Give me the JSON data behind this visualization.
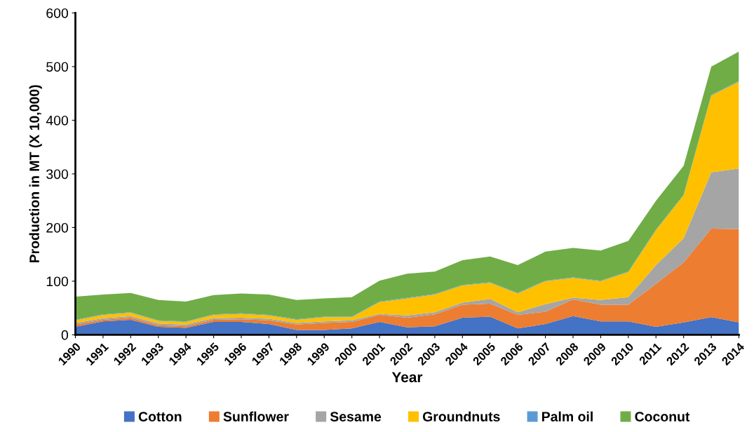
{
  "chart_data": {
    "type": "area",
    "stacked": true,
    "xlabel": "Year",
    "ylabel": "Production in MT (X 10,000)",
    "categories": [
      "1990",
      "1991",
      "1992",
      "1993",
      "1994",
      "1995",
      "1996",
      "1997",
      "1998",
      "1999",
      "2000",
      "2001",
      "2002",
      "2003",
      "2004",
      "2005",
      "2006",
      "2007",
      "2008",
      "2009",
      "2010",
      "2011",
      "2012",
      "2013",
      "2014"
    ],
    "series": [
      {
        "name": "Cotton",
        "color": "#4472c4",
        "values": [
          15,
          25,
          28,
          15,
          13,
          24,
          24,
          20,
          9,
          9,
          12,
          24,
          14,
          16,
          32,
          34,
          12,
          20,
          35,
          25,
          25,
          15,
          23,
          33,
          23
        ]
      },
      {
        "name": "Sunflower",
        "color": "#ed7d31",
        "values": [
          4,
          3,
          4,
          3,
          3,
          4,
          5,
          7,
          10,
          13,
          12,
          13,
          18,
          22,
          24,
          24,
          25,
          23,
          31,
          31,
          31,
          80,
          112,
          165,
          174
        ]
      },
      {
        "name": "Sesame",
        "color": "#a5a5a5",
        "values": [
          3,
          3,
          3,
          3,
          3,
          3,
          3,
          3,
          3,
          3,
          3,
          2,
          4,
          4,
          4,
          9,
          5,
          14,
          3,
          9,
          14,
          35,
          45,
          105,
          113
        ]
      },
      {
        "name": "Groundnuts",
        "color": "#ffc000",
        "values": [
          5,
          6,
          6,
          5,
          5,
          6,
          7,
          6,
          6,
          8,
          6,
          22,
          32,
          33,
          32,
          30,
          35,
          43,
          37,
          35,
          47,
          65,
          80,
          143,
          162
        ]
      },
      {
        "name": "Palm oil",
        "color": "#5b9bd5",
        "values": [
          1,
          1,
          1,
          1,
          1,
          1,
          1,
          1,
          1,
          1,
          1,
          1,
          1,
          1,
          1,
          1,
          1,
          1,
          1,
          1,
          1,
          1,
          1,
          1,
          1
        ]
      },
      {
        "name": "Coconut",
        "color": "#70ad47",
        "values": [
          43,
          37,
          36,
          38,
          37,
          36,
          37,
          38,
          36,
          34,
          36,
          39,
          45,
          42,
          46,
          48,
          52,
          54,
          55,
          56,
          57,
          54,
          54,
          53,
          55
        ]
      }
    ],
    "ylim": [
      0,
      600
    ],
    "yticks": [
      0,
      100,
      200,
      300,
      400,
      500,
      600
    ],
    "grid": false,
    "legend": "bottom"
  }
}
